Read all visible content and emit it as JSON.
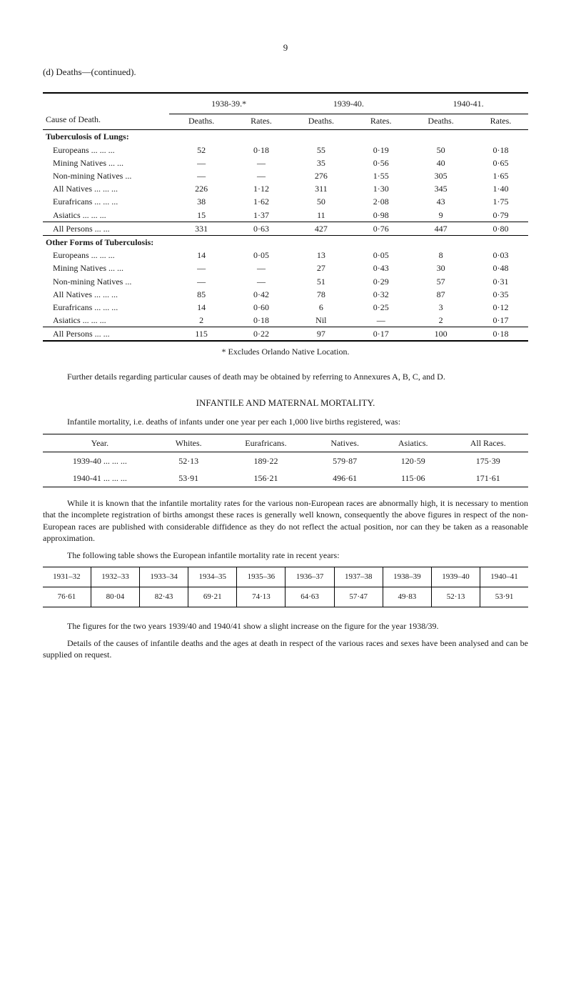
{
  "pageNumber": "9",
  "sectionHead": "(d) Deaths—(continued).",
  "table1": {
    "causeHeader": "Cause of Death.",
    "periods": [
      "1938-39.*",
      "1939-40.",
      "1940-41."
    ],
    "subHeaders": [
      "Deaths.",
      "Rates.",
      "Deaths.",
      "Rates.",
      "Deaths.",
      "Rates."
    ],
    "groups": [
      {
        "title": "Tuberculosis of Lungs:",
        "rows": [
          {
            "label": "Europeans ... ... ...",
            "c": [
              "52",
              "0·18",
              "55",
              "0·19",
              "50",
              "0·18"
            ]
          },
          {
            "label": "Mining Natives ... ...",
            "c": [
              "—",
              "—",
              "35",
              "0·56",
              "40",
              "0·65"
            ]
          },
          {
            "label": "Non-mining Natives ...",
            "c": [
              "—",
              "—",
              "276",
              "1·55",
              "305",
              "1·65"
            ]
          },
          {
            "label": "All Natives ... ... ...",
            "c": [
              "226",
              "1·12",
              "311",
              "1·30",
              "345",
              "1·40"
            ]
          },
          {
            "label": "Eurafricans ... ... ...",
            "c": [
              "38",
              "1·62",
              "50",
              "2·08",
              "43",
              "1·75"
            ]
          },
          {
            "label": "Asiatics ... ... ...",
            "c": [
              "15",
              "1·37",
              "11",
              "0·98",
              "9",
              "0·79"
            ]
          }
        ],
        "summary": {
          "label": "All Persons ... ...",
          "c": [
            "331",
            "0·63",
            "427",
            "0·76",
            "447",
            "0·80"
          ]
        }
      },
      {
        "title": "Other Forms of Tuberculosis:",
        "rows": [
          {
            "label": "Europeans ... ... ...",
            "c": [
              "14",
              "0·05",
              "13",
              "0·05",
              "8",
              "0·03"
            ]
          },
          {
            "label": "Mining Natives ... ...",
            "c": [
              "—",
              "—",
              "27",
              "0·43",
              "30",
              "0·48"
            ]
          },
          {
            "label": "Non-mining Natives ...",
            "c": [
              "—",
              "—",
              "51",
              "0·29",
              "57",
              "0·31"
            ]
          },
          {
            "label": "All Natives ... ... ...",
            "c": [
              "85",
              "0·42",
              "78",
              "0·32",
              "87",
              "0·35"
            ]
          },
          {
            "label": "Eurafricans ... ... ...",
            "c": [
              "14",
              "0·60",
              "6",
              "0·25",
              "3",
              "0·12"
            ]
          },
          {
            "label": "Asiatics ... ... ...",
            "c": [
              "2",
              "0·18",
              "Nil",
              "—",
              "2",
              "0·17"
            ]
          }
        ],
        "summary": {
          "label": "All Persons ... ...",
          "c": [
            "115",
            "0·22",
            "97",
            "0·17",
            "100",
            "0·18"
          ]
        }
      }
    ]
  },
  "footnote": "* Excludes Orlando Native Location.",
  "para1": "Further details regarding particular causes of death may be obtained by referring to Annexures A, B, C, and D.",
  "infantileHeading": "INFANTILE AND MATERNAL MORTALITY.",
  "para2": "Infantile mortality, i.e. deaths of infants under one year per each 1,000 live births registered, was:",
  "table2": {
    "headers": [
      "Year.",
      "Whites.",
      "Eurafricans.",
      "Natives.",
      "Asiatics.",
      "All Races."
    ],
    "rows": [
      {
        "c": [
          "1939-40 ... ... ...",
          "52·13",
          "189·22",
          "579·87",
          "120·59",
          "175·39"
        ]
      },
      {
        "c": [
          "1940-41 ... ... ...",
          "53·91",
          "156·21",
          "496·61",
          "115·06",
          "171·61"
        ]
      }
    ]
  },
  "para3": "While it is known that the infantile mortality rates for the various non-European races are abnormally high, it is necessary to mention that the incomplete registration of births amongst these races is generally well known, consequently the above figures in respect of the non-European races are published with considerable diffidence as they do not reflect the actual position, nor can they be taken as a reasonable approximation.",
  "para4": "The following table shows the European infantile mortality rate in recent years:",
  "table3": {
    "headers": [
      "1931–32",
      "1932–33",
      "1933–34",
      "1934–35",
      "1935–36",
      "1936–37",
      "1937–38",
      "1938–39",
      "1939–40",
      "1940–41"
    ],
    "row": [
      "76·61",
      "80·04",
      "82·43",
      "69·21",
      "74·13",
      "64·63",
      "57·47",
      "49·83",
      "52·13",
      "53·91"
    ]
  },
  "para5": "The figures for the two years 1939/40 and 1940/41 show a slight increase on the figure for the year 1938/39.",
  "para6": "Details of the causes of infantile deaths and the ages at death in respect of the various races and sexes have been analysed and can be supplied on request."
}
